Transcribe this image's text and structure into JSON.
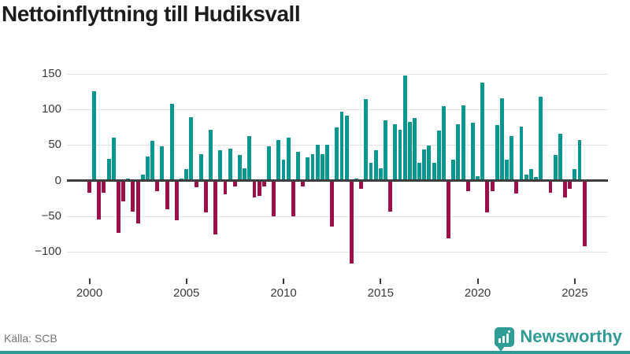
{
  "title": "Nettoinflyttning till Hudiksvall",
  "source": "Källa: SCB",
  "logo": {
    "text": "Newsworthy",
    "icon": "bar-chart-badge-icon"
  },
  "colors": {
    "positive_bar": "#0b968f",
    "negative_bar": "#9b1048",
    "axis": "#3d3d3d",
    "gridline": "#e2e2e2",
    "logo_teal": "#2f9c96"
  },
  "chart_data": {
    "type": "bar",
    "title": "Nettoinflyttning till Hudiksvall",
    "xlabel": "",
    "ylabel": "",
    "x_unit": "quarter",
    "start_period": "2000 Q1",
    "end_period": "2025 Q3",
    "x_ticks": [
      2000,
      2005,
      2010,
      2015,
      2020,
      2025
    ],
    "y_ticks": [
      150,
      100,
      50,
      0,
      -50,
      -100
    ],
    "ylim": [
      -150,
      175
    ],
    "grid": "horizontal",
    "legend": "none",
    "values": [
      -15,
      125,
      -53,
      -15,
      31,
      60,
      -72,
      -27,
      3,
      -42,
      -58,
      9,
      34,
      56,
      -13,
      48,
      -39,
      108,
      -54,
      3,
      16,
      89,
      -8,
      37,
      -43,
      71,
      -74,
      43,
      -17,
      45,
      -6,
      36,
      17,
      63,
      -22,
      -20,
      -7,
      48,
      -48,
      57,
      30,
      60,
      -48,
      40,
      -7,
      33,
      37,
      51,
      37,
      50,
      -63,
      75,
      97,
      91,
      -115,
      3,
      -10,
      114,
      25,
      43,
      17,
      85,
      -42,
      79,
      71,
      148,
      82,
      88,
      25,
      44,
      49,
      25,
      70,
      105,
      -79,
      30,
      79,
      106,
      -13,
      81,
      6,
      138,
      -43,
      -13,
      78,
      116,
      30,
      63,
      -16,
      76,
      8,
      16,
      5,
      118,
      0,
      -15,
      36,
      66,
      -22,
      -10,
      16,
      57,
      -90
    ]
  }
}
